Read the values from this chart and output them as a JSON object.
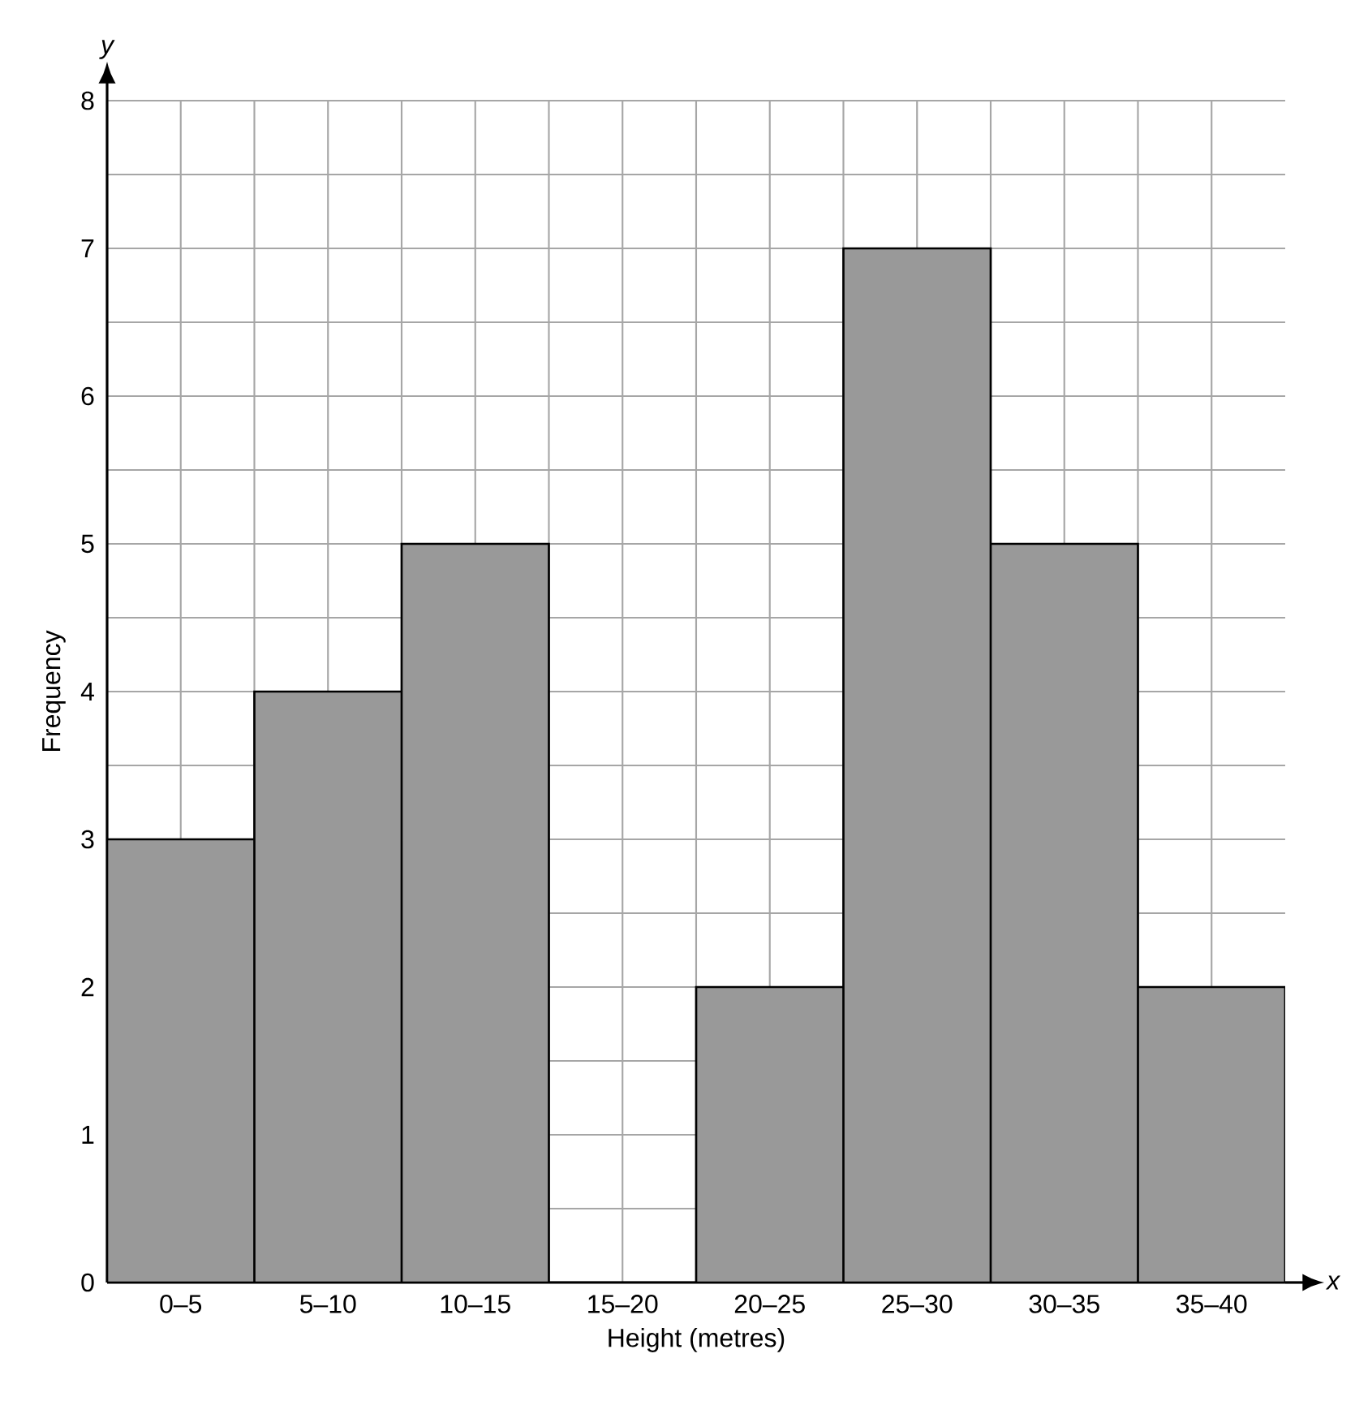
{
  "chart_data": {
    "type": "bar",
    "xlabel": "Height (metres)",
    "ylabel": "Frequency",
    "annotations": [
      "y",
      "x"
    ],
    "categories": [
      "0–5",
      "5–10",
      "10–15",
      "15–20",
      "20–25",
      "25–30",
      "30–35",
      "35–40"
    ],
    "values": [
      3,
      4,
      5,
      0,
      2,
      7,
      5,
      2
    ],
    "color": "#999999",
    "ylim": [
      0,
      8
    ],
    "yticks": [
      0,
      1,
      2,
      3,
      4,
      5,
      6,
      7,
      8
    ],
    "grid": true
  }
}
